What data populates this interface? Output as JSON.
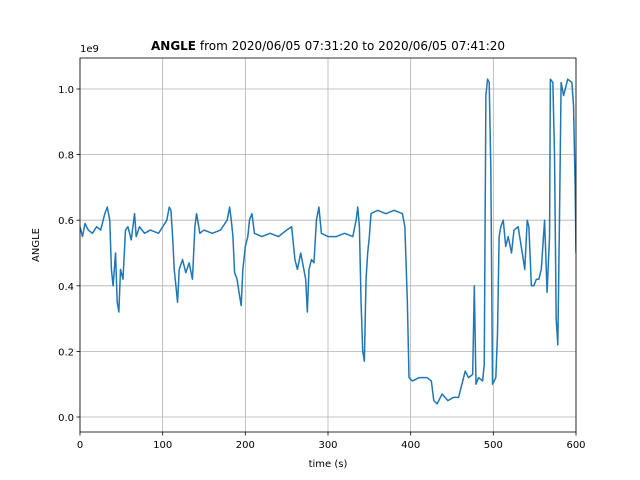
{
  "chart_data": {
    "type": "line",
    "title_bold": "ANGLE",
    "title": "from 2020/06/05 07:31:20 to 2020/06/05 07:41:20",
    "xlabel": "time (s)",
    "ylabel": "ANGLE",
    "offset_label": "1e9",
    "color": "#1f77b4",
    "grid": true,
    "xlim": [
      0,
      600
    ],
    "ylim": [
      -0.0457,
      1.0945
    ],
    "xticks": [
      0,
      100,
      200,
      300,
      400,
      500,
      600
    ],
    "yticks": [
      {
        "value": 0,
        "label": "0.0"
      },
      0.2,
      0.4,
      0.6,
      0.8,
      {
        "value": 1,
        "label": "1.0"
      }
    ],
    "x": [
      0,
      3,
      6,
      10,
      15,
      20,
      25,
      30,
      33,
      36,
      38,
      40,
      43,
      45,
      47,
      49,
      52,
      55,
      58,
      62,
      66,
      68,
      72,
      78,
      85,
      95,
      100,
      105,
      108,
      110,
      112,
      114,
      116,
      118,
      120,
      124,
      128,
      132,
      136,
      139,
      141,
      145,
      150,
      160,
      170,
      178,
      181,
      183,
      185,
      187,
      190,
      193,
      195,
      197,
      200,
      203,
      205,
      208,
      211,
      220,
      230,
      240,
      250,
      256,
      260,
      263,
      267,
      270,
      273,
      275,
      277,
      280,
      283,
      286,
      289,
      292,
      300,
      310,
      320,
      330,
      334,
      336,
      338,
      340,
      342,
      344,
      346,
      348,
      350,
      352,
      360,
      370,
      380,
      390,
      393,
      396,
      398,
      402,
      410,
      420,
      425,
      428,
      432,
      438,
      445,
      452,
      458,
      462,
      466,
      470,
      475,
      477,
      479,
      482,
      487,
      489,
      491,
      493,
      495,
      497,
      499,
      503,
      505,
      507,
      509,
      512,
      515,
      518,
      522,
      525,
      530,
      535,
      538,
      541,
      543,
      546,
      549,
      552,
      555,
      558,
      562,
      565,
      568,
      569,
      572,
      574,
      576,
      578,
      580,
      582,
      585,
      590,
      595,
      597,
      599,
      600
    ],
    "values": [
      0.58,
      0.55,
      0.59,
      0.57,
      0.56,
      0.58,
      0.57,
      0.62,
      0.64,
      0.6,
      0.45,
      0.4,
      0.5,
      0.35,
      0.32,
      0.45,
      0.42,
      0.57,
      0.58,
      0.54,
      0.62,
      0.55,
      0.58,
      0.56,
      0.57,
      0.56,
      0.58,
      0.6,
      0.64,
      0.63,
      0.55,
      0.45,
      0.4,
      0.35,
      0.45,
      0.48,
      0.44,
      0.47,
      0.42,
      0.58,
      0.62,
      0.56,
      0.57,
      0.56,
      0.57,
      0.6,
      0.64,
      0.6,
      0.55,
      0.44,
      0.42,
      0.37,
      0.34,
      0.45,
      0.52,
      0.55,
      0.6,
      0.62,
      0.56,
      0.55,
      0.56,
      0.55,
      0.57,
      0.58,
      0.48,
      0.45,
      0.5,
      0.46,
      0.42,
      0.32,
      0.45,
      0.48,
      0.47,
      0.6,
      0.64,
      0.56,
      0.55,
      0.55,
      0.56,
      0.55,
      0.6,
      0.64,
      0.58,
      0.35,
      0.2,
      0.17,
      0.42,
      0.5,
      0.55,
      0.62,
      0.63,
      0.62,
      0.63,
      0.62,
      0.58,
      0.35,
      0.12,
      0.11,
      0.12,
      0.12,
      0.11,
      0.05,
      0.04,
      0.07,
      0.05,
      0.06,
      0.06,
      0.1,
      0.14,
      0.12,
      0.13,
      0.4,
      0.1,
      0.12,
      0.11,
      0.16,
      0.98,
      1.03,
      1.02,
      0.75,
      0.1,
      0.12,
      0.25,
      0.55,
      0.58,
      0.6,
      0.52,
      0.55,
      0.5,
      0.57,
      0.58,
      0.5,
      0.45,
      0.6,
      0.58,
      0.4,
      0.4,
      0.42,
      0.42,
      0.45,
      0.6,
      0.38,
      0.55,
      1.03,
      1.02,
      0.8,
      0.3,
      0.22,
      0.6,
      1.02,
      0.98,
      1.03,
      1.02,
      0.95,
      0.7,
      0.5
    ]
  }
}
